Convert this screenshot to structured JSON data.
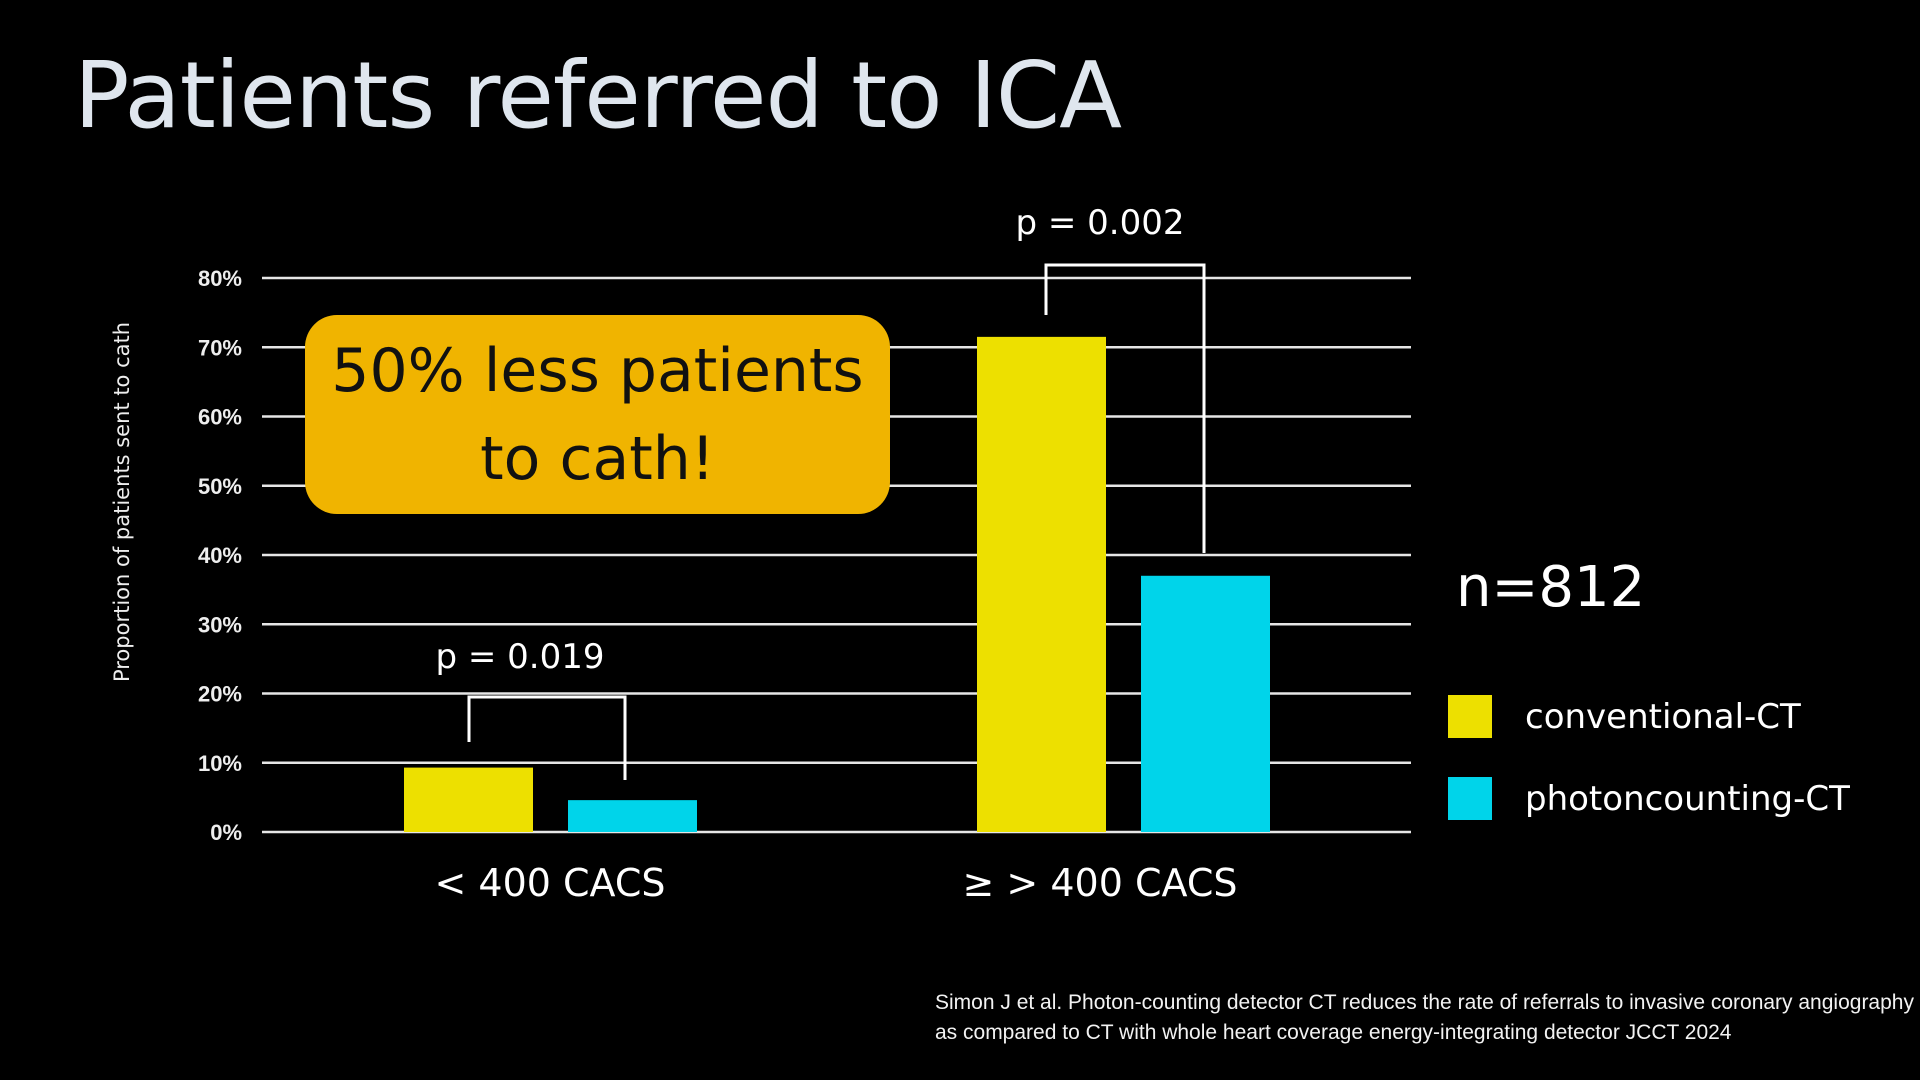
{
  "title": "Patients referred to ICA",
  "callout": {
    "line1": "50% less patients",
    "line2": "to cath!",
    "color": "#f0b400"
  },
  "n_label": "n=812",
  "citation": {
    "line1": "Simon J et al. Photon-counting detector CT reduces the rate of referrals to invasive coronary angiography",
    "line2": "as compared to CT with whole heart coverage energy-integrating detector JCCT 2024"
  },
  "chart_data": {
    "type": "bar",
    "ylabel": "Proportion of patients sent to cath",
    "xlabel": "",
    "ylim": [
      0,
      80
    ],
    "yticks": [
      "0%",
      "10%",
      "20%",
      "30%",
      "40%",
      "50%",
      "60%",
      "70%",
      "80%"
    ],
    "grid": true,
    "legend_placement": "right",
    "categories": [
      "< 400 CACS",
      "≥ > 400 CACS"
    ],
    "series": [
      {
        "name": "conventional-CT",
        "color": "#ede000",
        "values": [
          9.3,
          71.5
        ]
      },
      {
        "name": "photoncounting-CT",
        "color": "#00d4ea",
        "values": [
          4.6,
          37
        ]
      }
    ],
    "annotations": [
      "p = 0.019",
      "p = 0.002"
    ]
  }
}
